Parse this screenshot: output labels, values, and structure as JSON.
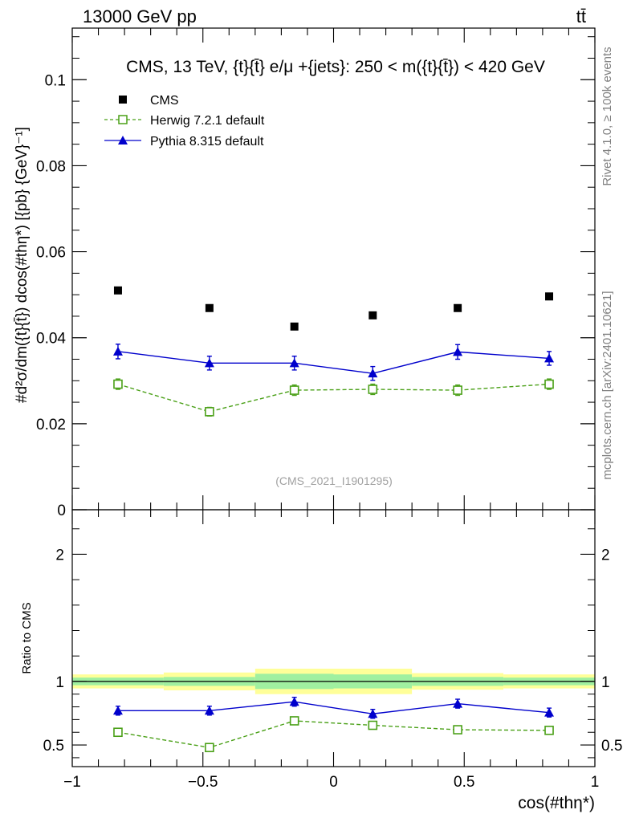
{
  "header": {
    "left": "13000 GeV pp",
    "right": "tt̄"
  },
  "side_labels": {
    "rivet": "Rivet 4.1.0, ≥ 100k events",
    "mcplots": "mcplots.cern.ch [arXiv:2401.10621]"
  },
  "chart_data": [
    {
      "panel": "main",
      "type": "scatter",
      "title": "CMS, 13 TeV, {t}{t̄} e/μ +{jets}: 250 < m({t}{t̄}) < 420 GeV",
      "ylabel": "#d²σ/dm({t}{t̄}) dcos(#thη*) [{pb} {GeV}⁻¹]",
      "watermark": "(CMS_2021_I1901295)",
      "xlim": [
        -1,
        1
      ],
      "ylim": [
        0,
        0.112
      ],
      "yticks": [
        0,
        0.02,
        0.04,
        0.06,
        0.08,
        0.1
      ],
      "ytick_labels": [
        "0",
        "0.02",
        "0.04",
        "0.06",
        "0.08",
        "0.1"
      ],
      "legend_position": "top-left",
      "x": [
        -0.825,
        -0.475,
        -0.15,
        0.15,
        0.475,
        0.825
      ],
      "bin_edges": [
        -1,
        -0.65,
        -0.3,
        0,
        0.3,
        0.65,
        1
      ],
      "series": [
        {
          "name": "CMS",
          "color": "#000000",
          "marker": "square",
          "values": [
            0.051,
            0.0469,
            0.0426,
            0.0452,
            0.0469,
            0.0496
          ]
        },
        {
          "name": "Herwig 7.2.1 default",
          "color": "#4aa017",
          "marker": "open-square",
          "line": "dashed",
          "values": [
            0.0292,
            0.0228,
            0.0278,
            0.028,
            0.0278,
            0.0292
          ],
          "errors": [
            0.0012,
            0.001,
            0.0012,
            0.0012,
            0.0012,
            0.0012
          ]
        },
        {
          "name": "Pythia 8.315 default",
          "color": "#0000cc",
          "marker": "triangle",
          "line": "solid",
          "values": [
            0.0368,
            0.0341,
            0.0341,
            0.0317,
            0.0367,
            0.0352
          ],
          "errors": [
            0.0017,
            0.0016,
            0.0016,
            0.0016,
            0.0017,
            0.0016
          ]
        }
      ]
    },
    {
      "panel": "ratio",
      "type": "line",
      "ylabel": "Ratio to CMS",
      "xlabel": "cos(#thη*)",
      "xlim": [
        -1,
        1
      ],
      "ylim": [
        0.33,
        2.35
      ],
      "yticks": [
        0.5,
        1,
        2
      ],
      "ytick_labels": [
        "0.5",
        "1",
        "2"
      ],
      "xticks": [
        -1,
        -0.5,
        0,
        0.5,
        1
      ],
      "xtick_labels": [
        "−1",
        "−0.5",
        "0",
        "0.5",
        "1"
      ],
      "x": [
        -0.825,
        -0.475,
        -0.15,
        0.15,
        0.475,
        0.825
      ],
      "bin_edges": [
        -1,
        -0.65,
        -0.3,
        0,
        0.3,
        0.65,
        1
      ],
      "band_inner_halfwidth": [
        0.03,
        0.035,
        0.06,
        0.055,
        0.035,
        0.03
      ],
      "band_outer_halfwidth": [
        0.055,
        0.07,
        0.1,
        0.1,
        0.065,
        0.055
      ],
      "band_colors": {
        "inner": "#a0f0a0",
        "outer": "#ffff99"
      },
      "series": [
        {
          "name": "Herwig 7.2.1 default",
          "color": "#4aa017",
          "marker": "open-square",
          "line": "dashed",
          "values": [
            0.6,
            0.48,
            0.69,
            0.655,
            0.62,
            0.615
          ],
          "errors": [
            0.025,
            0.025,
            0.03,
            0.03,
            0.025,
            0.025
          ]
        },
        {
          "name": "Pythia 8.315 default",
          "color": "#0000cc",
          "marker": "triangle",
          "line": "solid",
          "values": [
            0.77,
            0.77,
            0.84,
            0.745,
            0.825,
            0.755
          ],
          "errors": [
            0.035,
            0.035,
            0.035,
            0.035,
            0.035,
            0.035
          ]
        }
      ]
    }
  ]
}
